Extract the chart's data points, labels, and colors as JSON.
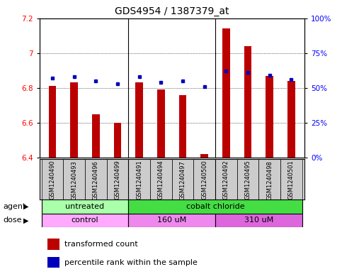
{
  "title": "GDS4954 / 1387379_at",
  "samples": [
    "GSM1240490",
    "GSM1240493",
    "GSM1240496",
    "GSM1240499",
    "GSM1240491",
    "GSM1240494",
    "GSM1240497",
    "GSM1240500",
    "GSM1240492",
    "GSM1240495",
    "GSM1240498",
    "GSM1240501"
  ],
  "transformed_count": [
    6.81,
    6.83,
    6.65,
    6.6,
    6.83,
    6.79,
    6.76,
    6.42,
    7.14,
    7.04,
    6.87,
    6.84
  ],
  "percentile_rank": [
    57,
    58,
    55,
    53,
    58,
    54,
    55,
    51,
    62,
    61,
    59,
    56
  ],
  "ylim_left": [
    6.4,
    7.2
  ],
  "ylim_right": [
    0,
    100
  ],
  "yticks_left": [
    6.4,
    6.6,
    6.8,
    7.0,
    7.2
  ],
  "ytick_labels_left": [
    "6.4",
    "6.6",
    "6.8",
    "7",
    "7.2"
  ],
  "yticks_right": [
    0,
    25,
    50,
    75,
    100
  ],
  "ytick_labels_right": [
    "0%",
    "25%",
    "50%",
    "75%",
    "100%"
  ],
  "bar_color": "#bb0000",
  "dot_color": "#0000bb",
  "bar_width": 0.35,
  "agent_groups": [
    {
      "label": "untreated",
      "start": 0,
      "end": 3,
      "color": "#aaeea a"
    },
    {
      "label": "cobalt chloride",
      "start": 4,
      "end": 11,
      "color": "#55dd55"
    }
  ],
  "dose_groups": [
    {
      "label": "control",
      "start": 0,
      "end": 3,
      "color": "#ee88ee"
    },
    {
      "label": "160 uM",
      "start": 4,
      "end": 7,
      "color": "#dd66dd"
    },
    {
      "label": "310 uM",
      "start": 8,
      "end": 11,
      "color": "#cc44cc"
    }
  ],
  "agent_label": "agent",
  "dose_label": "dose",
  "legend_bar_label": "transformed count",
  "legend_dot_label": "percentile rank within the sample",
  "grid_color": "#000000",
  "background_color": "#ffffff",
  "label_fontsize": 8,
  "tick_fontsize": 7.5,
  "title_fontsize": 10,
  "sep_lines": [
    3.5,
    7.5
  ],
  "agent_colors": [
    "#aaffaa",
    "#44dd44"
  ],
  "dose_colors": [
    "#ffaaff",
    "#ee88ee",
    "#dd66dd"
  ]
}
